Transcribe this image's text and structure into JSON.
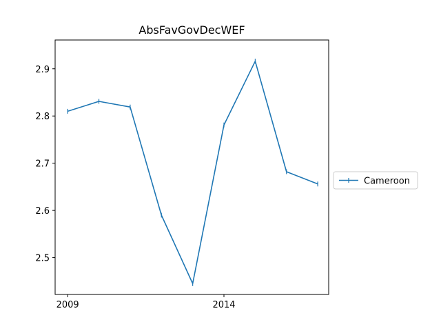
{
  "chart_data": {
    "type": "line",
    "title": "AbsFavGovDecWEF",
    "xlabel": "",
    "ylabel": "",
    "x": [
      2009,
      2010,
      2011,
      2012,
      2013,
      2014,
      2015,
      2016,
      2017
    ],
    "series": [
      {
        "name": "Cameroon",
        "values": [
          2.81,
          2.831,
          2.819,
          2.59,
          2.445,
          2.781,
          2.916,
          2.682,
          2.656
        ],
        "color": "#1f77b4"
      }
    ],
    "xticks": [
      2009,
      2014
    ],
    "xtick_labels": [
      "2009",
      "2014"
    ],
    "yticks": [
      2.5,
      2.6,
      2.7,
      2.8,
      2.9
    ],
    "ytick_labels": [
      "2.5",
      "2.6",
      "2.7",
      "2.8",
      "2.9"
    ],
    "xlim": [
      2008.6,
      2017.35
    ],
    "ylim": [
      2.422,
      2.961
    ],
    "grid": false,
    "legend_position": "right"
  }
}
